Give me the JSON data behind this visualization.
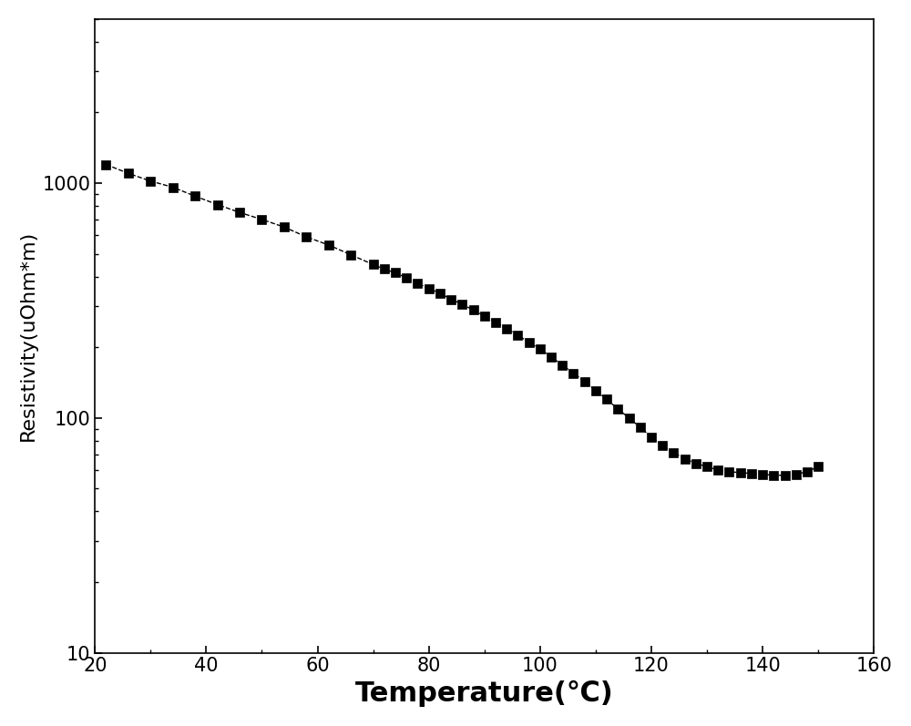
{
  "temperature": [
    22,
    26,
    30,
    34,
    38,
    42,
    46,
    50,
    54,
    58,
    62,
    66,
    70,
    72,
    74,
    76,
    78,
    80,
    82,
    84,
    86,
    88,
    90,
    92,
    94,
    96,
    98,
    100,
    102,
    104,
    106,
    108,
    110,
    112,
    114,
    116,
    118,
    120,
    122,
    124,
    126,
    128,
    130,
    132,
    134,
    136,
    138,
    140,
    142,
    144,
    146,
    148,
    150
  ],
  "resistivity": [
    1200,
    1100,
    1020,
    960,
    880,
    810,
    750,
    700,
    650,
    590,
    545,
    495,
    450,
    430,
    415,
    395,
    375,
    355,
    340,
    320,
    305,
    288,
    272,
    256,
    240,
    225,
    210,
    196,
    182,
    168,
    155,
    143,
    131,
    120,
    109,
    100,
    91,
    83,
    76,
    71,
    67,
    64,
    62,
    60,
    59,
    58.5,
    58,
    57.5,
    57,
    57,
    57.5,
    59,
    62
  ],
  "xlabel": "Temperature(℃)",
  "ylabel": "Resistivity(uOhm*m)",
  "xlim": [
    20,
    160
  ],
  "ylim": [
    10,
    5000
  ],
  "xticks": [
    20,
    40,
    60,
    80,
    100,
    120,
    140,
    160
  ],
  "marker": "s",
  "marker_color": "#000000",
  "marker_size": 7,
  "line_style": "--",
  "line_color": "#000000",
  "line_width": 1.0,
  "bg_color": "#ffffff",
  "xlabel_fontsize": 22,
  "ylabel_fontsize": 16,
  "tick_fontsize": 15,
  "xlabel_fontweight": "bold"
}
